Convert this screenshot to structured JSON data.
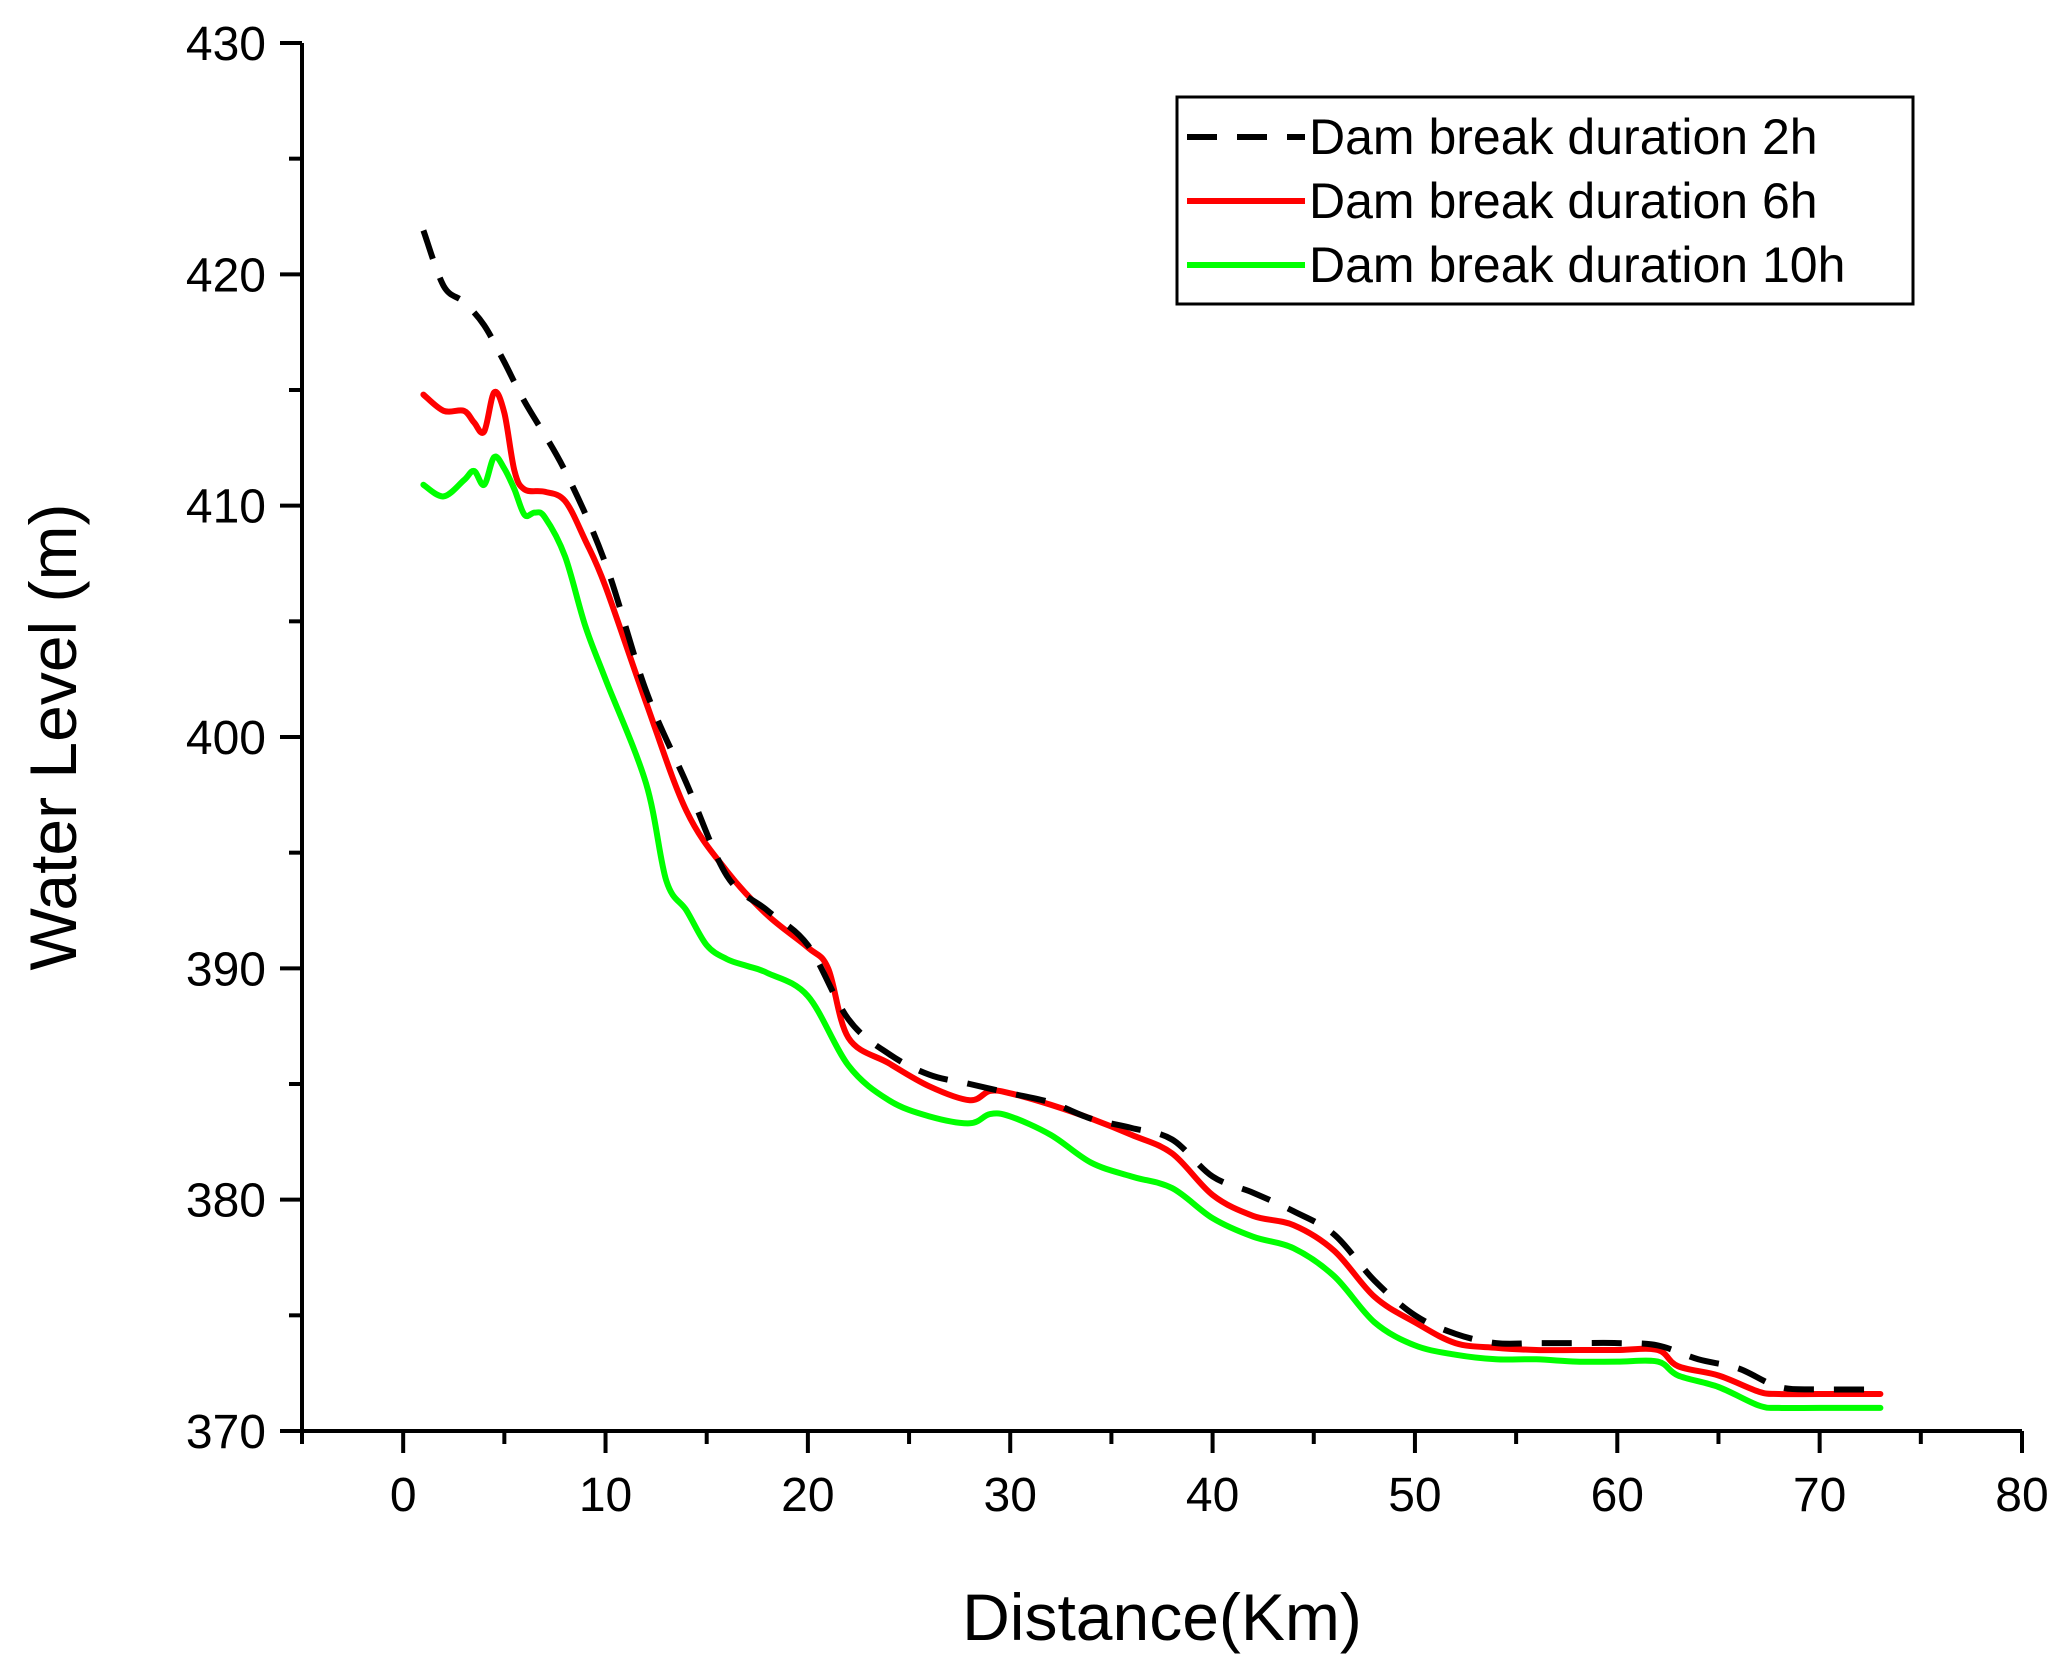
{
  "chart_data": {
    "type": "line",
    "title": "",
    "xlabel": "Distance(Km)",
    "ylabel": "Water Level (m)",
    "xlim": [
      -5,
      80
    ],
    "ylim": [
      370,
      430
    ],
    "xticks": [
      0,
      10,
      20,
      30,
      40,
      50,
      60,
      70,
      80
    ],
    "yticks": [
      370,
      380,
      390,
      400,
      410,
      420,
      430
    ],
    "grid": false,
    "legend_position": "top-right",
    "series": [
      {
        "name": "Dam break duration 2h",
        "color": "#000000",
        "style": "dashed",
        "x": [
          1,
          2,
          3,
          4,
          5,
          6,
          8,
          10,
          12,
          14,
          16,
          18,
          20,
          22,
          24,
          26,
          28,
          30,
          32,
          34,
          36,
          38,
          40,
          42,
          44,
          46,
          48,
          50,
          52,
          54,
          56,
          58,
          60,
          62,
          64,
          66,
          68,
          70,
          73
        ],
        "values": [
          421.9,
          419.5,
          418.8,
          417.8,
          416.2,
          414.5,
          411.5,
          407.5,
          402.0,
          398.0,
          394.0,
          392.5,
          391.0,
          387.8,
          386.3,
          385.4,
          385.0,
          384.6,
          384.2,
          383.5,
          383.1,
          382.6,
          381.0,
          380.3,
          379.5,
          378.5,
          376.5,
          375.0,
          374.2,
          373.8,
          373.8,
          373.8,
          373.8,
          373.7,
          373.1,
          372.7,
          371.9,
          371.8,
          371.8
        ]
      },
      {
        "name": "Dam break duration 6h",
        "color": "#ff0000",
        "style": "solid",
        "x": [
          1,
          2,
          3,
          3.5,
          4,
          4.5,
          5,
          5.5,
          6,
          7,
          8,
          9,
          10,
          12,
          14,
          16,
          18,
          20,
          21,
          22,
          24,
          26,
          28,
          29,
          30,
          32,
          34,
          36,
          38,
          40,
          42,
          44,
          46,
          48,
          50,
          52,
          54,
          56,
          58,
          60,
          62,
          63,
          65,
          67,
          68,
          70,
          73
        ],
        "values": [
          414.8,
          414.1,
          414.1,
          413.6,
          413.2,
          414.9,
          414.0,
          411.5,
          410.7,
          410.6,
          410.2,
          408.5,
          406.5,
          401.5,
          396.8,
          394.2,
          392.3,
          390.9,
          390.0,
          387.0,
          385.9,
          384.9,
          384.3,
          384.7,
          384.6,
          384.1,
          383.5,
          382.8,
          382.0,
          380.2,
          379.3,
          378.9,
          377.8,
          375.8,
          374.7,
          373.8,
          373.6,
          373.5,
          373.5,
          373.5,
          373.5,
          372.8,
          372.4,
          371.7,
          371.6,
          371.6,
          371.6
        ]
      },
      {
        "name": "Dam break duration 10h",
        "color": "#00ff00",
        "style": "solid",
        "x": [
          1,
          2,
          3,
          3.5,
          4,
          4.5,
          5,
          5.5,
          6,
          6.5,
          7,
          8,
          9,
          10,
          12,
          13,
          14,
          15,
          16,
          17,
          18,
          20,
          22,
          24,
          26,
          28,
          29,
          30,
          32,
          34,
          36,
          38,
          40,
          42,
          44,
          46,
          48,
          50,
          52,
          54,
          56,
          58,
          60,
          62,
          63,
          65,
          67,
          68,
          70,
          73
        ],
        "values": [
          410.9,
          410.4,
          411.1,
          411.5,
          410.9,
          412.1,
          411.6,
          410.7,
          409.6,
          409.7,
          409.5,
          407.8,
          404.8,
          402.5,
          398.0,
          393.8,
          392.5,
          391.0,
          390.4,
          390.1,
          389.8,
          388.8,
          385.8,
          384.3,
          383.6,
          383.3,
          383.7,
          383.6,
          382.8,
          381.6,
          381.0,
          380.5,
          379.2,
          378.4,
          377.9,
          376.7,
          374.7,
          373.7,
          373.3,
          373.1,
          373.1,
          373.0,
          373.0,
          373.0,
          372.4,
          371.9,
          371.1,
          371.0,
          371.0,
          371.0
        ]
      }
    ]
  }
}
